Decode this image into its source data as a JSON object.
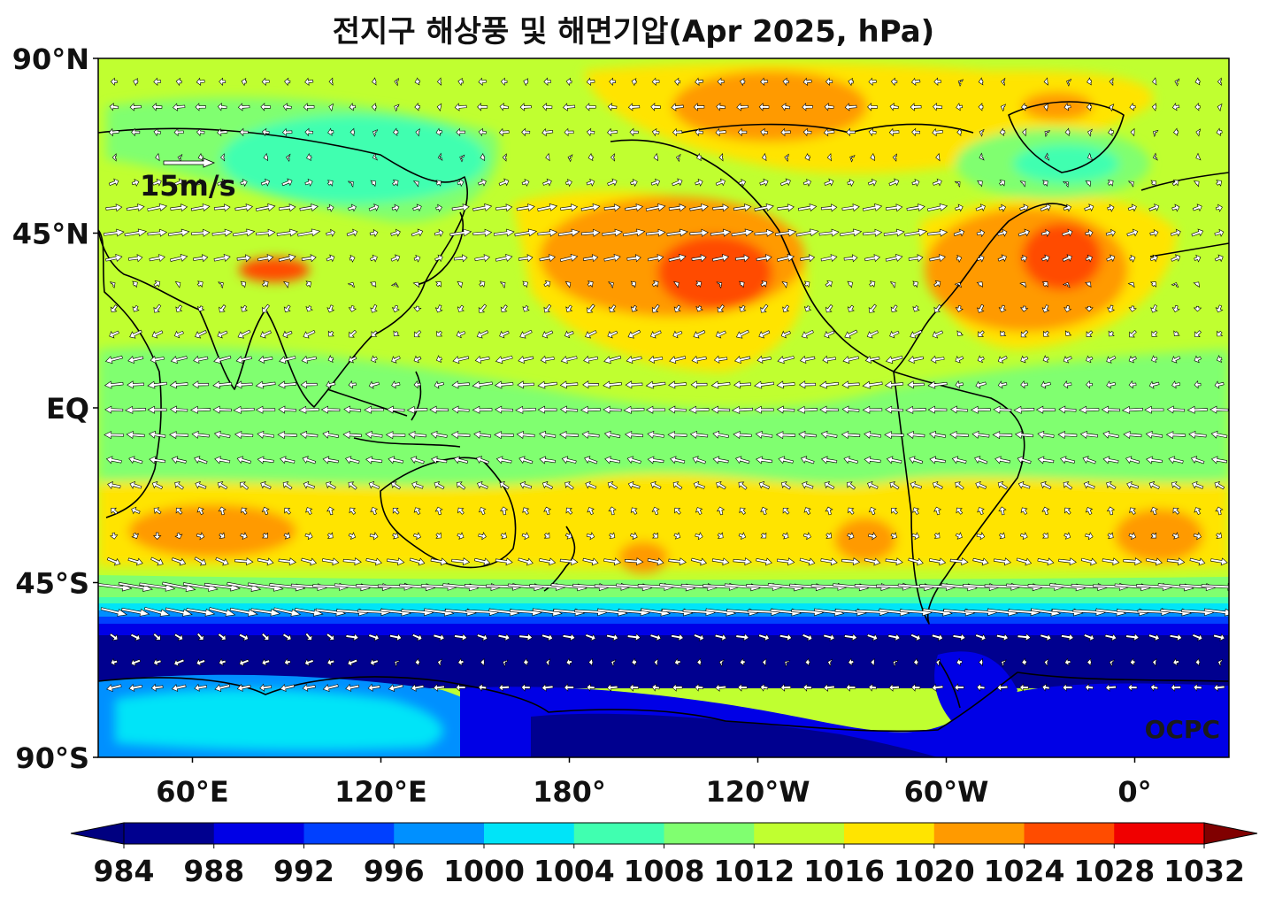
{
  "title": "전지구 해상풍 및 해면기압(Apr 2025, hPa)",
  "credit": "OCPC",
  "reference_vector_label": "15m/s",
  "map": {
    "lon_range_east": [
      30,
      390
    ],
    "lat_range": [
      -90,
      90
    ],
    "lat_ticks": [
      {
        "value": 90,
        "label": "90°N"
      },
      {
        "value": 45,
        "label": "45°N"
      },
      {
        "value": 0,
        "label": "EQ"
      },
      {
        "value": -45,
        "label": "45°S"
      },
      {
        "value": -90,
        "label": "90°S"
      }
    ],
    "lon_ticks": [
      {
        "value": 60,
        "label": "60°E"
      },
      {
        "value": 120,
        "label": "120°E"
      },
      {
        "value": 180,
        "label": "180°"
      },
      {
        "value": 240,
        "label": "120°W"
      },
      {
        "value": 300,
        "label": "60°W"
      },
      {
        "value": 360,
        "label": "0°"
      }
    ]
  },
  "colorbar": {
    "levels": [
      984,
      988,
      992,
      996,
      1000,
      1004,
      1008,
      1012,
      1016,
      1020,
      1024,
      1028,
      1032
    ],
    "labels": [
      "984",
      "988",
      "992",
      "996",
      "1000",
      "1004",
      "1008",
      "1012",
      "1016",
      "1020",
      "1024",
      "1028",
      "1032"
    ],
    "colors": [
      "#00008f",
      "#0000e6",
      "#0040ff",
      "#0090ff",
      "#00e4f8",
      "#40ffb0",
      "#80ff70",
      "#c0ff30",
      "#ffe400",
      "#ff9a00",
      "#ff4c00",
      "#f00000"
    ],
    "under_color": "#000080",
    "over_color": "#800000",
    "extend": "both"
  },
  "pressure_centers": [
    {
      "lon": 230,
      "lat": 36,
      "value": 1029
    },
    {
      "lon": 328,
      "lat": 38,
      "value": 1028
    },
    {
      "lon": 225,
      "lat": 78,
      "value": 1022
    },
    {
      "lon": 75,
      "lat": -32,
      "value": 1022
    },
    {
      "lon": 265,
      "lat": -33,
      "value": 1021
    },
    {
      "lon": 360,
      "lat": -33,
      "value": 1021
    },
    {
      "lon": 200,
      "lat": -38,
      "value": 1020
    },
    {
      "lon": 80,
      "lat": 38,
      "value": 1024
    },
    {
      "lon": 125,
      "lat": 55,
      "value": 1005
    },
    {
      "lon": 340,
      "lat": 63,
      "value": 1005
    },
    {
      "lon": 120,
      "lat": -75,
      "value": 995
    },
    {
      "lon": 300,
      "lat": -70,
      "value": 984
    }
  ]
}
